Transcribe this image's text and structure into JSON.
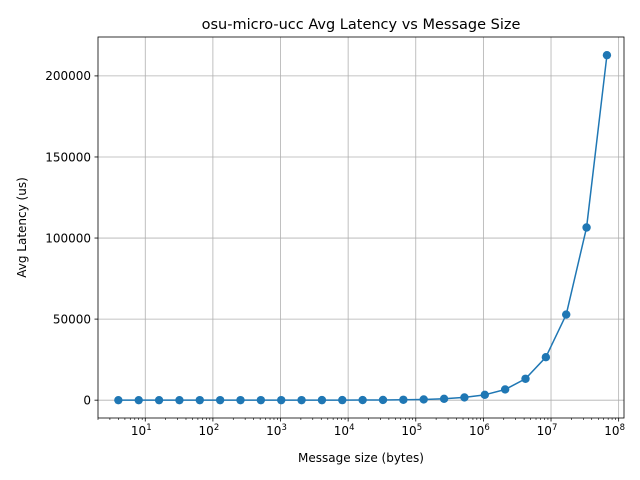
{
  "chart_data": {
    "type": "line",
    "title": "osu-micro-ucc Avg Latency vs Message Size",
    "xlabel": "Message size (bytes)",
    "ylabel": "Avg Latency (us)",
    "x_scale": "log",
    "y_scale": "linear",
    "grid": true,
    "markers": "circle",
    "line_color": "#1f77b4",
    "xlim": [
      2,
      120000000
    ],
    "ylim": [
      -11000,
      224000
    ],
    "x_ticks": [
      {
        "base": "10",
        "exp": "1",
        "value": 10
      },
      {
        "base": "10",
        "exp": "2",
        "value": 100
      },
      {
        "base": "10",
        "exp": "3",
        "value": 1000
      },
      {
        "base": "10",
        "exp": "4",
        "value": 10000
      },
      {
        "base": "10",
        "exp": "5",
        "value": 100000
      },
      {
        "base": "10",
        "exp": "6",
        "value": 1000000
      },
      {
        "base": "10",
        "exp": "7",
        "value": 10000000
      },
      {
        "base": "10",
        "exp": "8",
        "value": 100000000
      }
    ],
    "y_ticks": [
      {
        "label": "0",
        "value": 0
      },
      {
        "label": "50000",
        "value": 50000
      },
      {
        "label": "100000",
        "value": 100000
      },
      {
        "label": "150000",
        "value": 150000
      },
      {
        "label": "200000",
        "value": 200000
      }
    ],
    "x": [
      4,
      8,
      16,
      32,
      64,
      128,
      256,
      512,
      1024,
      2048,
      4096,
      8192,
      16384,
      32768,
      65536,
      131072,
      262144,
      524288,
      1048576,
      2097152,
      4194304,
      8388608,
      16777216,
      33554432,
      67108864
    ],
    "y": [
      5,
      5,
      5,
      5,
      6,
      6,
      7,
      8,
      10,
      14,
      22,
      40,
      70,
      130,
      240,
      450,
      850,
      1700,
      3300,
      6600,
      13200,
      26500,
      52800,
      106500,
      212800
    ]
  }
}
